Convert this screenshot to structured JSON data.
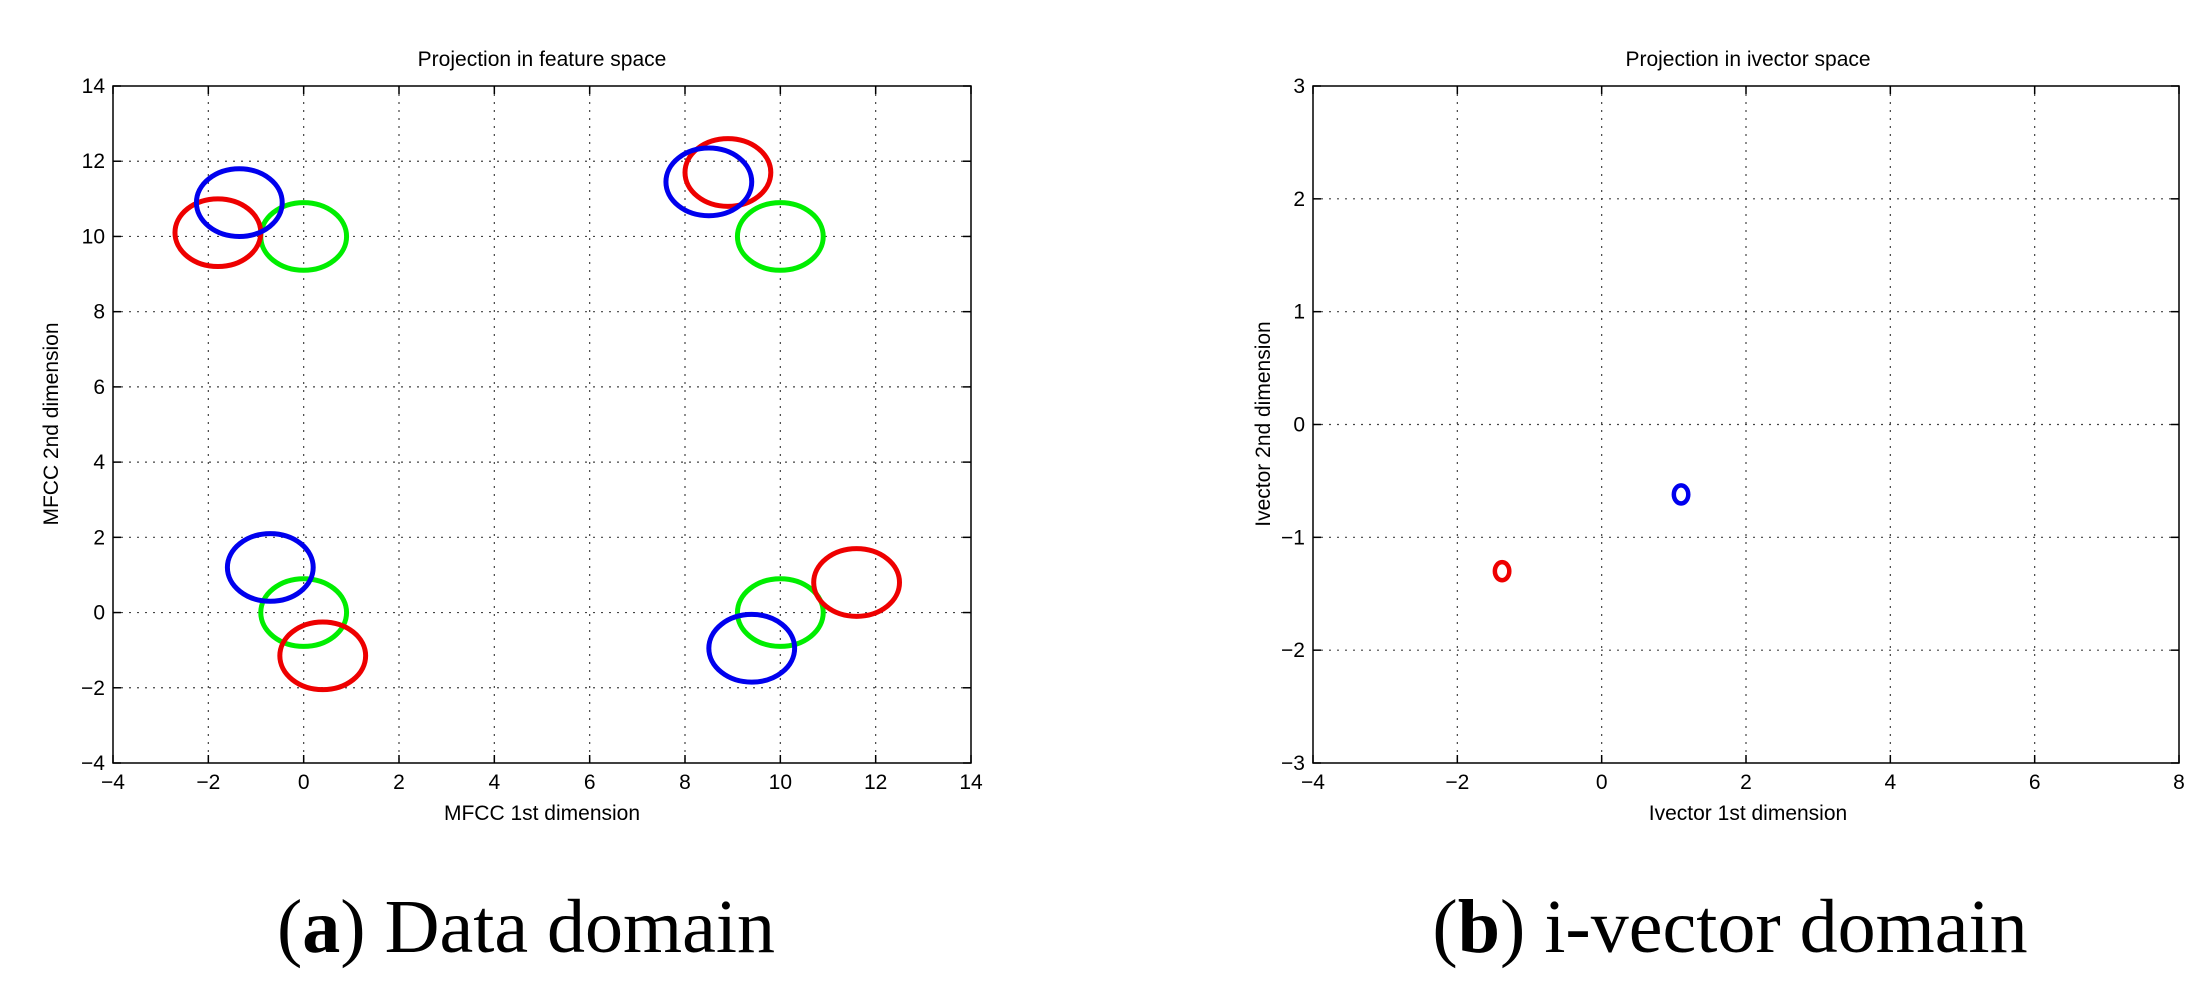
{
  "chart_data": [
    {
      "type": "scatter",
      "subtype": "gaussian-ellipses",
      "title": "Projection in feature space",
      "xlabel": "MFCC 1st dimension",
      "ylabel": "MFCC 2nd dimension",
      "xlim": [
        -4,
        14
      ],
      "ylim": [
        -4,
        14
      ],
      "xticks": [
        -4,
        -2,
        0,
        2,
        4,
        6,
        8,
        10,
        12,
        14
      ],
      "yticks": [
        -4,
        -2,
        0,
        2,
        4,
        6,
        8,
        10,
        12,
        14
      ],
      "xtick_labels": [
        "−4",
        "−2",
        "0",
        "2",
        "4",
        "6",
        "8",
        "10",
        "12",
        "14"
      ],
      "ytick_labels": [
        "−4",
        "−2",
        "0",
        "2",
        "4",
        "6",
        "8",
        "10",
        "12",
        "14"
      ],
      "grid": true,
      "caption": {
        "letter": "a",
        "text": " Data domain"
      },
      "series": [
        {
          "color": "#00ee00",
          "ellipses": [
            {
              "cx": 0,
              "cy": 10,
              "rx": 0.9,
              "ry": 0.9
            },
            {
              "cx": 10,
              "cy": 10,
              "rx": 0.9,
              "ry": 0.9
            },
            {
              "cx": 0,
              "cy": 0,
              "rx": 0.9,
              "ry": 0.9
            },
            {
              "cx": 10,
              "cy": 0,
              "rx": 0.9,
              "ry": 0.9
            }
          ]
        },
        {
          "color": "#ee0000",
          "ellipses": [
            {
              "cx": -1.8,
              "cy": 10.1,
              "rx": 0.9,
              "ry": 0.9
            },
            {
              "cx": 8.9,
              "cy": 11.7,
              "rx": 0.9,
              "ry": 0.9
            },
            {
              "cx": 0.4,
              "cy": -1.15,
              "rx": 0.9,
              "ry": 0.9
            },
            {
              "cx": 11.6,
              "cy": 0.8,
              "rx": 0.9,
              "ry": 0.9
            }
          ]
        },
        {
          "color": "#0000ee",
          "ellipses": [
            {
              "cx": -1.35,
              "cy": 10.9,
              "rx": 0.9,
              "ry": 0.9
            },
            {
              "cx": 8.5,
              "cy": 11.45,
              "rx": 0.9,
              "ry": 0.9
            },
            {
              "cx": -0.7,
              "cy": 1.2,
              "rx": 0.9,
              "ry": 0.9
            },
            {
              "cx": 9.4,
              "cy": -0.95,
              "rx": 0.9,
              "ry": 0.9
            }
          ]
        }
      ]
    },
    {
      "type": "scatter",
      "subtype": "gaussian-ellipses",
      "title": "Projection in ivector space",
      "xlabel": "Ivector 1st dimension",
      "ylabel": "Ivector 2nd dimension",
      "xlim": [
        -4,
        8
      ],
      "ylim": [
        -3,
        3
      ],
      "xticks": [
        -4,
        -2,
        0,
        2,
        4,
        6,
        8
      ],
      "yticks": [
        -3,
        -2,
        -1,
        0,
        1,
        2,
        3
      ],
      "xtick_labels": [
        "−4",
        "−2",
        "0",
        "2",
        "4",
        "6",
        "8"
      ],
      "ytick_labels": [
        "−3",
        "−2",
        "−1",
        "0",
        "1",
        "2",
        "3"
      ],
      "grid": true,
      "caption": {
        "letter": "b",
        "text": " i-vector domain"
      },
      "series": [
        {
          "color": "#ee0000",
          "ellipses": [
            {
              "cx": -1.38,
              "cy": -1.3,
              "rx": 0.1,
              "ry": 0.08
            }
          ]
        },
        {
          "color": "#0000ee",
          "ellipses": [
            {
              "cx": 1.1,
              "cy": -0.62,
              "rx": 0.1,
              "ry": 0.08
            }
          ]
        }
      ]
    }
  ]
}
